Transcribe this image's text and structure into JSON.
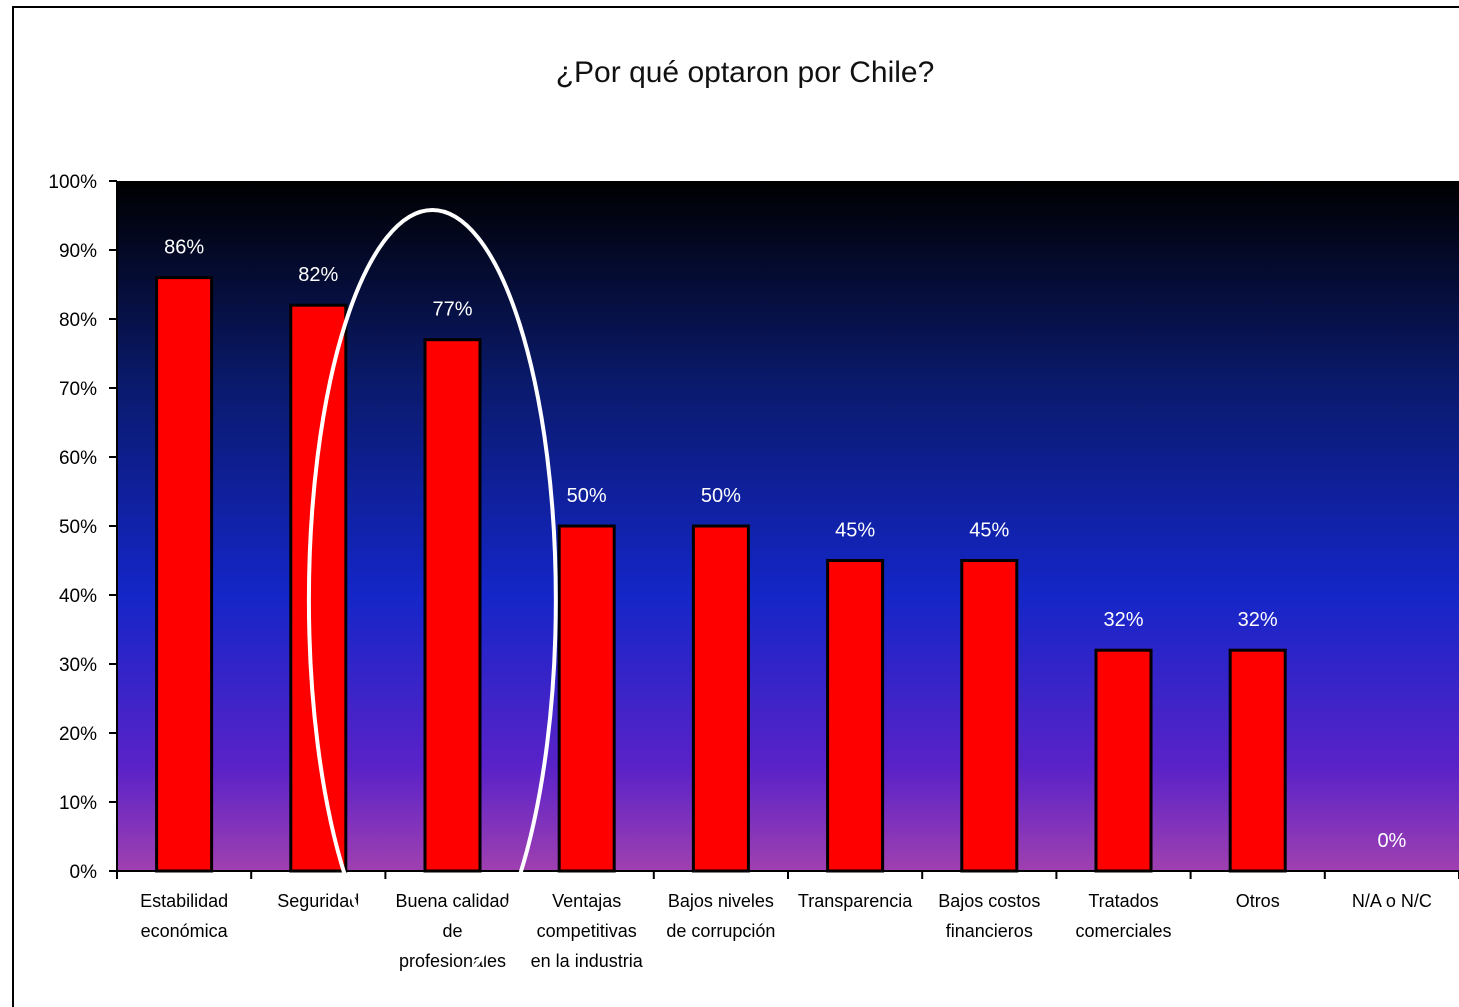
{
  "chart_data": {
    "type": "bar",
    "title": "¿Por qué optaron por Chile?",
    "categories": [
      [
        "Estabilidad",
        "económica"
      ],
      [
        "Seguridad"
      ],
      [
        "Buena calidad",
        "de",
        "profesionales"
      ],
      [
        "Ventajas",
        "competitivas",
        "en la industria"
      ],
      [
        "Bajos niveles",
        "de corrupción"
      ],
      [
        "Transparencia"
      ],
      [
        "Bajos costos",
        "financieros"
      ],
      [
        "Tratados",
        "comerciales"
      ],
      [
        "Otros"
      ],
      [
        "N/A o N/C"
      ]
    ],
    "values": [
      86,
      82,
      77,
      50,
      50,
      45,
      45,
      32,
      32,
      0
    ],
    "value_labels": [
      "86%",
      "82%",
      "77%",
      "50%",
      "50%",
      "45%",
      "45%",
      "32%",
      "32%",
      "0%"
    ],
    "ylim": [
      0,
      100
    ],
    "yticks": [
      0,
      10,
      20,
      30,
      40,
      50,
      60,
      70,
      80,
      90,
      100
    ],
    "ytick_labels": [
      "0%",
      "10%",
      "20%",
      "30%",
      "40%",
      "50%",
      "60%",
      "70%",
      "80%",
      "90%",
      "100%"
    ],
    "grid": false,
    "bar_color": "#ff0000",
    "highlight_category_index": 2,
    "highlight_color": "#ffffff",
    "background_gradient": [
      "#000000",
      "#0a1a6e",
      "#1426c8",
      "#5a22c8",
      "#a040b0"
    ]
  }
}
